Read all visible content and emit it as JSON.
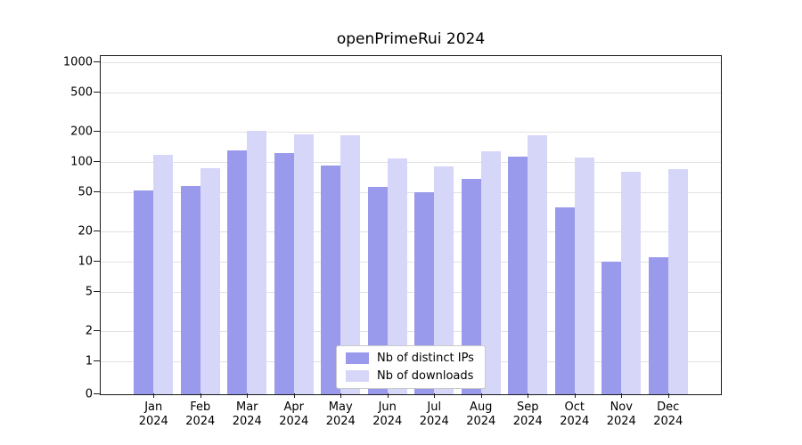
{
  "title": "openPrimeRui 2024",
  "chart_data": {
    "type": "bar",
    "title": "openPrimeRui 2024",
    "scale": "log-with-zero-baseline",
    "grid": true,
    "legend_position": "bottom-center",
    "categories": [
      "Jan",
      "Feb",
      "Mar",
      "Apr",
      "May",
      "Jun",
      "Jul",
      "Aug",
      "Sep",
      "Oct",
      "Nov",
      "Dec"
    ],
    "category_year": "2024",
    "yticks": [
      0,
      1,
      2,
      5,
      10,
      20,
      50,
      100,
      200,
      500,
      1000
    ],
    "ylim": [
      0,
      1300
    ],
    "series": [
      {
        "name": "Nb of distinct IPs",
        "color": "#9a9aec",
        "values": [
          52,
          58,
          130,
          122,
          93,
          56,
          50,
          67,
          113,
          35,
          10,
          11
        ]
      },
      {
        "name": "Nb of downloads",
        "color": "#d6d6f8",
        "values": [
          118,
          87,
          205,
          190,
          185,
          108,
          90,
          128,
          185,
          112,
          80,
          85
        ]
      }
    ]
  },
  "colors": {
    "grid": "#e2e2e2",
    "axis": "#1a1a1a",
    "legend_border": "#c9c9c9",
    "background": "#ffffff"
  }
}
